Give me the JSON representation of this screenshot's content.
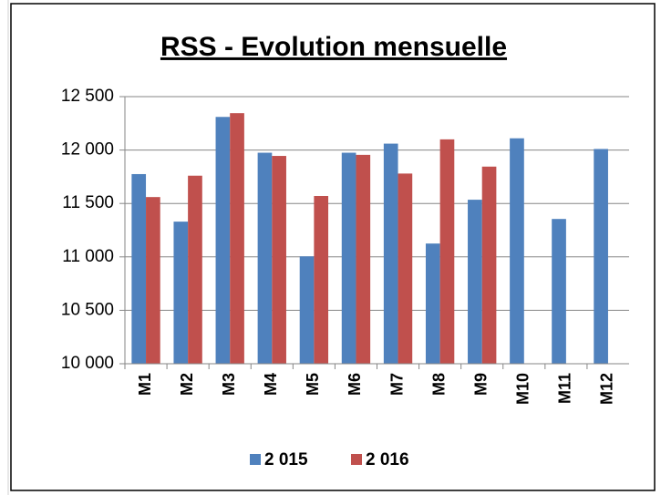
{
  "chart_data": {
    "type": "bar",
    "title": "RSS - Evolution  mensuelle",
    "categories": [
      "M1",
      "M2",
      "M3",
      "M4",
      "M5",
      "M6",
      "M7",
      "M8",
      "M9",
      "M10",
      "M11",
      "M12"
    ],
    "series": [
      {
        "name": "2 015",
        "color": "#4f81bd",
        "values": [
          11775,
          11330,
          12310,
          11975,
          11005,
          11975,
          12060,
          11125,
          11535,
          12110,
          11355,
          12010
        ]
      },
      {
        "name": "2 016",
        "color": "#c0504d",
        "values": [
          11560,
          11760,
          12345,
          11945,
          11570,
          11955,
          11780,
          12100,
          11845,
          null,
          null,
          null
        ]
      }
    ],
    "ylim": [
      10000,
      12500
    ],
    "yticks": [
      {
        "value": 10000,
        "label": "10 000"
      },
      {
        "value": 10500,
        "label": "10 500"
      },
      {
        "value": 11000,
        "label": "11 000"
      },
      {
        "value": 11500,
        "label": "11 500"
      },
      {
        "value": 12000,
        "label": "12 000"
      },
      {
        "value": 12500,
        "label": "12 500"
      }
    ],
    "grid": true
  }
}
